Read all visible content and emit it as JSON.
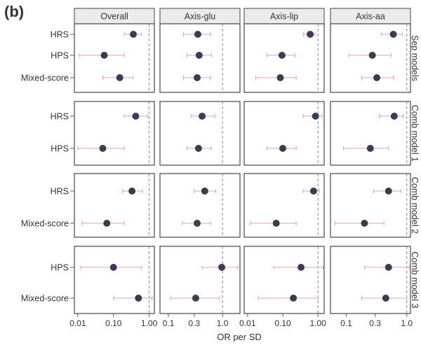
{
  "panel_label": "(b)",
  "x_axis_title": "OR per SD",
  "colors": {
    "point": "#3d3b4f",
    "errorbar": "#e8a0b0",
    "refline": "#8a8a8a",
    "frame": "#606060",
    "strip_bg": "#ebebeb",
    "text": "#333333"
  },
  "chart_data": {
    "type": "forest-plot",
    "xscale": "log",
    "columns": [
      {
        "name": "Overall",
        "ticks": [
          0.01,
          0.1,
          1.0
        ],
        "tick_labels": [
          "0.01",
          "0.10",
          "1.00"
        ],
        "xlim": [
          0.008,
          1.4
        ]
      },
      {
        "name": "Axis-glu",
        "ticks": [
          0.1,
          0.3,
          1.0
        ],
        "tick_labels": [
          "0.1",
          "0.3",
          "1.0"
        ],
        "xlim": [
          0.07,
          2.1
        ]
      },
      {
        "name": "Axis-lip",
        "ticks": [
          0.01,
          0.1,
          1.0
        ],
        "tick_labels": [
          "0.01",
          "0.10",
          "1.00"
        ],
        "xlim": [
          0.008,
          1.5
        ]
      },
      {
        "name": "Axis-aa",
        "ticks": [
          0.1,
          0.3,
          1.0
        ],
        "tick_labels": [
          "0.1",
          "0.3",
          "1.0"
        ],
        "xlim": [
          0.055,
          1.15
        ]
      }
    ],
    "reference_line": 1.0,
    "rows": [
      {
        "name": "Sep models",
        "labels": [
          "HRS",
          "HPS",
          "Mixed-score"
        ],
        "estimates": [
          [
            {
              "or": 0.36,
              "lo": 0.2,
              "hi": 0.6
            },
            {
              "or": 0.055,
              "lo": 0.011,
              "hi": 0.2
            },
            {
              "or": 0.15,
              "lo": 0.05,
              "hi": 0.35
            }
          ],
          [
            {
              "or": 0.35,
              "lo": 0.19,
              "hi": 0.6
            },
            {
              "or": 0.37,
              "lo": 0.22,
              "hi": 0.63
            },
            {
              "or": 0.34,
              "lo": 0.19,
              "hi": 0.6
            }
          ],
          [
            {
              "or": 0.6,
              "lo": 0.38,
              "hi": 0.8
            },
            {
              "or": 0.095,
              "lo": 0.035,
              "hi": 0.22
            },
            {
              "or": 0.085,
              "lo": 0.017,
              "hi": 0.24
            }
          ],
          [
            {
              "or": 0.6,
              "lo": 0.38,
              "hi": 0.85
            },
            {
              "or": 0.27,
              "lo": 0.11,
              "hi": 0.55
            },
            {
              "or": 0.32,
              "lo": 0.18,
              "hi": 0.6
            }
          ]
        ]
      },
      {
        "name": "Comb model 1",
        "labels": [
          "HRS",
          "HPS"
        ],
        "estimates": [
          [
            {
              "or": 0.42,
              "lo": 0.2,
              "hi": 0.9
            },
            {
              "or": 0.05,
              "lo": 0.01,
              "hi": 0.2
            }
          ],
          [
            {
              "or": 0.42,
              "lo": 0.26,
              "hi": 0.72
            },
            {
              "or": 0.36,
              "lo": 0.22,
              "hi": 0.62
            }
          ],
          [
            {
              "or": 0.85,
              "lo": 0.38,
              "hi": 1.3
            },
            {
              "or": 0.1,
              "lo": 0.035,
              "hi": 0.24
            }
          ],
          [
            {
              "or": 0.62,
              "lo": 0.35,
              "hi": 0.87
            },
            {
              "or": 0.25,
              "lo": 0.09,
              "hi": 0.5
            }
          ]
        ]
      },
      {
        "name": "Comb model 2",
        "labels": [
          "HRS",
          "Mixed-score"
        ],
        "estimates": [
          [
            {
              "or": 0.33,
              "lo": 0.18,
              "hi": 0.65
            },
            {
              "or": 0.065,
              "lo": 0.013,
              "hi": 0.2
            }
          ],
          [
            {
              "or": 0.47,
              "lo": 0.3,
              "hi": 0.75
            },
            {
              "or": 0.34,
              "lo": 0.18,
              "hi": 0.6
            }
          ],
          [
            {
              "or": 0.75,
              "lo": 0.38,
              "hi": 1.1
            },
            {
              "or": 0.065,
              "lo": 0.012,
              "hi": 0.24
            }
          ],
          [
            {
              "or": 0.5,
              "lo": 0.28,
              "hi": 0.8
            },
            {
              "or": 0.2,
              "lo": 0.065,
              "hi": 0.42
            }
          ]
        ]
      },
      {
        "name": "Comb model 3",
        "labels": [
          "HPS",
          "Mixed-score"
        ],
        "estimates": [
          [
            {
              "or": 0.1,
              "lo": 0.012,
              "hi": 0.6
            },
            {
              "or": 0.5,
              "lo": 0.1,
              "hi": 1.2
            }
          ],
          [
            {
              "or": 0.97,
              "lo": 0.42,
              "hi": 1.9
            },
            {
              "or": 0.32,
              "lo": 0.11,
              "hi": 0.88
            }
          ],
          [
            {
              "or": 0.33,
              "lo": 0.055,
              "hi": 1.4
            },
            {
              "or": 0.2,
              "lo": 0.02,
              "hi": 1.0
            }
          ],
          [
            {
              "or": 0.5,
              "lo": 0.2,
              "hi": 1.1
            },
            {
              "or": 0.45,
              "lo": 0.18,
              "hi": 1.0
            }
          ]
        ]
      }
    ]
  }
}
